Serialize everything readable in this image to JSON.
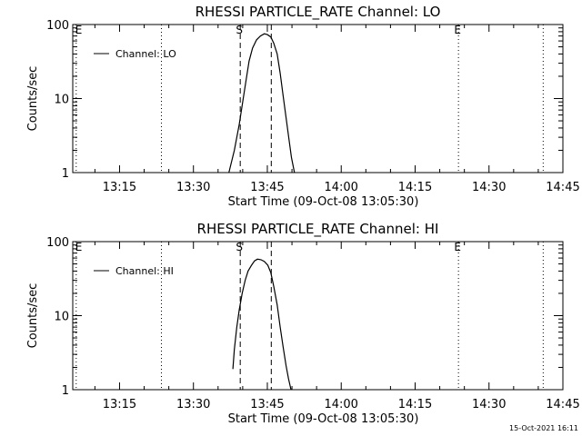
{
  "footer": {
    "timestamp": "15-Oct-2021 16:11"
  },
  "chart_data": [
    {
      "type": "line",
      "title": "RHESSI PARTICLE_RATE Channel: LO",
      "xlabel": "Start Time (09-Oct-08 13:05:30)",
      "ylabel": "Counts/sec",
      "xlim": [
        5.5,
        105
      ],
      "ylim": [
        1,
        100
      ],
      "yscale": "log",
      "grid": false,
      "legend_position": "top-left",
      "x_ticks": [
        {
          "value": 15,
          "label": "13:15"
        },
        {
          "value": 30,
          "label": "13:30"
        },
        {
          "value": 45,
          "label": "13:45"
        },
        {
          "value": 60,
          "label": "14:00"
        },
        {
          "value": 75,
          "label": "14:15"
        },
        {
          "value": 90,
          "label": "14:30"
        },
        {
          "value": 105,
          "label": "14:45"
        }
      ],
      "y_ticks": [
        {
          "value": 1,
          "label": "1"
        },
        {
          "value": 10,
          "label": "10"
        },
        {
          "value": 100,
          "label": "100"
        }
      ],
      "series": [
        {
          "name": "Channel: LO",
          "x": [
            37.2,
            38.3,
            39.3,
            40.0,
            40.7,
            41.3,
            42.0,
            42.8,
            43.6,
            44.4,
            45.0,
            45.7,
            46.3,
            47.0,
            47.6,
            48.2,
            48.8,
            49.4,
            49.9,
            50.5
          ],
          "y": [
            1.0,
            2.0,
            4.5,
            9.0,
            18,
            32,
            48,
            62,
            70,
            75,
            73,
            68,
            56,
            40,
            22,
            11,
            5.5,
            2.8,
            1.6,
            1.0
          ]
        }
      ],
      "markers": [
        {
          "x": 6.2,
          "label": "E",
          "style": "dotted"
        },
        {
          "x": 23.5,
          "label": "",
          "style": "dotted"
        },
        {
          "x": 39.5,
          "label": "S",
          "style": "dashed"
        },
        {
          "x": 45.8,
          "label": "",
          "style": "dashed"
        },
        {
          "x": 83.8,
          "label": "E",
          "style": "dotted"
        },
        {
          "x": 101,
          "label": "",
          "style": "dotted"
        }
      ]
    },
    {
      "type": "line",
      "title": "RHESSI PARTICLE_RATE Channel: HI",
      "xlabel": "Start Time (09-Oct-08 13:05:30)",
      "ylabel": "Counts/sec",
      "xlim": [
        5.5,
        105
      ],
      "ylim": [
        1,
        100
      ],
      "yscale": "log",
      "grid": false,
      "legend_position": "top-left",
      "x_ticks": [
        {
          "value": 15,
          "label": "13:15"
        },
        {
          "value": 30,
          "label": "13:30"
        },
        {
          "value": 45,
          "label": "13:45"
        },
        {
          "value": 60,
          "label": "14:00"
        },
        {
          "value": 75,
          "label": "14:15"
        },
        {
          "value": 90,
          "label": "14:30"
        },
        {
          "value": 105,
          "label": "14:45"
        }
      ],
      "y_ticks": [
        {
          "value": 1,
          "label": "1"
        },
        {
          "value": 10,
          "label": "10"
        },
        {
          "value": 100,
          "label": "100"
        }
      ],
      "series": [
        {
          "name": "Channel: HI",
          "x": [
            38.0,
            38.3,
            38.8,
            39.3,
            39.9,
            40.5,
            41.1,
            41.8,
            42.4,
            43.0,
            43.7,
            44.4,
            45.1,
            45.7,
            46.3,
            47.0,
            47.6,
            48.2,
            48.8,
            49.3,
            49.8
          ],
          "y": [
            1.9,
            3.5,
            7.0,
            12,
            20,
            30,
            40,
            48,
            55,
            58,
            57,
            54,
            48,
            38,
            25,
            14,
            7.0,
            3.8,
            2.1,
            1.4,
            1.0
          ]
        }
      ],
      "markers": [
        {
          "x": 6.2,
          "label": "E",
          "style": "dotted"
        },
        {
          "x": 23.5,
          "label": "",
          "style": "dotted"
        },
        {
          "x": 39.5,
          "label": "S",
          "style": "dashed"
        },
        {
          "x": 45.8,
          "label": "",
          "style": "dashed"
        },
        {
          "x": 83.8,
          "label": "E",
          "style": "dotted"
        },
        {
          "x": 101,
          "label": "",
          "style": "dotted"
        }
      ]
    }
  ]
}
